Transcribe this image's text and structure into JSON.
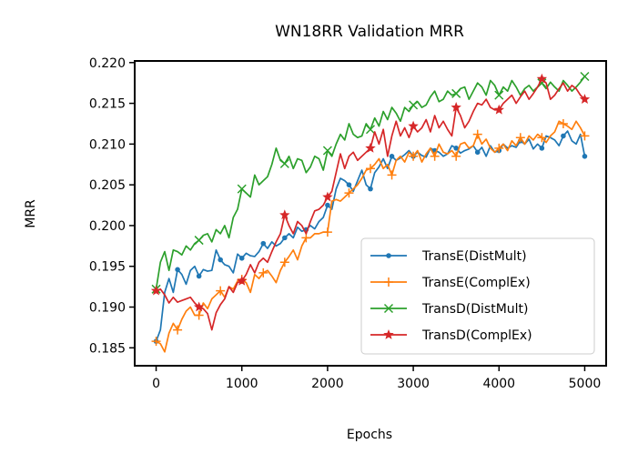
{
  "chart_data": {
    "type": "line",
    "title": "WN18RR Validation MRR",
    "xlabel": "Epochs",
    "ylabel": "MRR",
    "xlim": [
      -250,
      5250
    ],
    "ylim": [
      0.1828,
      0.2202
    ],
    "xticks": [
      0,
      1000,
      2000,
      3000,
      4000,
      5000
    ],
    "yticks": [
      0.185,
      0.19,
      0.195,
      0.2,
      0.205,
      0.21,
      0.215,
      0.22
    ],
    "xtick_labels": [
      "0",
      "1000",
      "2000",
      "3000",
      "4000",
      "5000"
    ],
    "ytick_labels": [
      "0.185",
      "0.190",
      "0.195",
      "0.200",
      "0.205",
      "0.210",
      "0.215",
      "0.220"
    ],
    "grid": false,
    "legend_position": "lower-right",
    "x": [
      0,
      50,
      100,
      150,
      200,
      250,
      300,
      350,
      400,
      450,
      500,
      550,
      600,
      650,
      700,
      750,
      800,
      850,
      900,
      950,
      1000,
      1050,
      1100,
      1150,
      1200,
      1250,
      1300,
      1350,
      1400,
      1450,
      1500,
      1550,
      1600,
      1650,
      1700,
      1750,
      1800,
      1850,
      1900,
      1950,
      2000,
      2050,
      2100,
      2150,
      2200,
      2250,
      2300,
      2350,
      2400,
      2450,
      2500,
      2550,
      2600,
      2650,
      2700,
      2750,
      2800,
      2850,
      2900,
      2950,
      3000,
      3050,
      3100,
      3150,
      3200,
      3250,
      3300,
      3350,
      3400,
      3450,
      3500,
      3550,
      3600,
      3650,
      3700,
      3750,
      3800,
      3850,
      3900,
      3950,
      4000,
      4050,
      4100,
      4150,
      4200,
      4250,
      4300,
      4350,
      4400,
      4450,
      4500,
      4550,
      4600,
      4650,
      4700,
      4750,
      4800,
      4850,
      4900,
      4950,
      5000
    ],
    "series": [
      {
        "name": "TransE(DistMult)",
        "color": "#1f77b4",
        "marker": "dot",
        "marker_every": 5,
        "values": [
          0.1858,
          0.1872,
          0.1918,
          0.1935,
          0.1918,
          0.1946,
          0.194,
          0.1928,
          0.1945,
          0.195,
          0.1938,
          0.1946,
          0.1944,
          0.1945,
          0.197,
          0.1958,
          0.1952,
          0.195,
          0.1942,
          0.1965,
          0.196,
          0.1966,
          0.1963,
          0.1962,
          0.1968,
          0.1978,
          0.1972,
          0.198,
          0.1975,
          0.1978,
          0.1985,
          0.199,
          0.1985,
          0.1998,
          0.1993,
          0.1995,
          0.2,
          0.1996,
          0.2005,
          0.201,
          0.2025,
          0.202,
          0.2045,
          0.2058,
          0.2055,
          0.205,
          0.2042,
          0.2055,
          0.2068,
          0.205,
          0.2045,
          0.2065,
          0.2072,
          0.2082,
          0.207,
          0.2085,
          0.208,
          0.2083,
          0.2087,
          0.2092,
          0.2085,
          0.209,
          0.2086,
          0.2084,
          0.2095,
          0.2092,
          0.209,
          0.2085,
          0.2088,
          0.2098,
          0.2095,
          0.2089,
          0.2092,
          0.2094,
          0.2098,
          0.209,
          0.2096,
          0.2085,
          0.2098,
          0.209,
          0.2092,
          0.21,
          0.2095,
          0.2098,
          0.2096,
          0.2104,
          0.21,
          0.2106,
          0.2094,
          0.21,
          0.2095,
          0.211,
          0.2108,
          0.2105,
          0.2098,
          0.211,
          0.2116,
          0.2104,
          0.21,
          0.2112,
          0.2085
        ]
      },
      {
        "name": "TransE(ComplEx)",
        "color": "#ff7f0e",
        "marker": "plus",
        "marker_every": 5,
        "values": [
          0.1858,
          0.1855,
          0.1845,
          0.1868,
          0.188,
          0.1872,
          0.1885,
          0.1895,
          0.19,
          0.189,
          0.189,
          0.1905,
          0.1898,
          0.191,
          0.1915,
          0.192,
          0.1912,
          0.1925,
          0.1922,
          0.1932,
          0.1934,
          0.193,
          0.1918,
          0.194,
          0.1935,
          0.1942,
          0.1945,
          0.1938,
          0.193,
          0.1945,
          0.1955,
          0.1962,
          0.197,
          0.1958,
          0.1975,
          0.1985,
          0.1985,
          0.199,
          0.199,
          0.1992,
          0.1992,
          0.203,
          0.2032,
          0.203,
          0.2035,
          0.204,
          0.2045,
          0.205,
          0.2058,
          0.2068,
          0.207,
          0.2075,
          0.2082,
          0.207,
          0.2075,
          0.2062,
          0.208,
          0.2085,
          0.2078,
          0.209,
          0.2085,
          0.2092,
          0.2078,
          0.2088,
          0.2095,
          0.2085,
          0.21,
          0.209,
          0.2088,
          0.2092,
          0.2085,
          0.21,
          0.2102,
          0.2095,
          0.2098,
          0.2112,
          0.21,
          0.2106,
          0.2095,
          0.209,
          0.2095,
          0.21,
          0.2092,
          0.2104,
          0.2098,
          0.2108,
          0.21,
          0.211,
          0.2105,
          0.2112,
          0.2108,
          0.2102,
          0.211,
          0.2115,
          0.2128,
          0.2125,
          0.2122,
          0.2118,
          0.2128,
          0.212,
          0.211
        ]
      },
      {
        "name": "TransD(DistMult)",
        "color": "#2ca02c",
        "marker": "x",
        "marker_every": 10,
        "values": [
          0.1922,
          0.1955,
          0.1968,
          0.1945,
          0.197,
          0.1968,
          0.1964,
          0.1975,
          0.197,
          0.1978,
          0.1982,
          0.1988,
          0.199,
          0.198,
          0.1995,
          0.199,
          0.2,
          0.1985,
          0.201,
          0.202,
          0.2045,
          0.204,
          0.2035,
          0.2062,
          0.205,
          0.2055,
          0.206,
          0.2075,
          0.2095,
          0.208,
          0.2076,
          0.2085,
          0.207,
          0.2082,
          0.208,
          0.2065,
          0.2072,
          0.2085,
          0.2082,
          0.2068,
          0.2092,
          0.2085,
          0.21,
          0.2112,
          0.2105,
          0.2125,
          0.2112,
          0.2108,
          0.211,
          0.2125,
          0.2118,
          0.2132,
          0.2122,
          0.214,
          0.213,
          0.2145,
          0.2138,
          0.2128,
          0.2145,
          0.214,
          0.2148,
          0.2152,
          0.2145,
          0.2148,
          0.2158,
          0.2165,
          0.2152,
          0.2155,
          0.2165,
          0.216,
          0.2162,
          0.2168,
          0.217,
          0.2155,
          0.2165,
          0.2175,
          0.217,
          0.216,
          0.2178,
          0.2172,
          0.216,
          0.217,
          0.2165,
          0.2178,
          0.217,
          0.216,
          0.2168,
          0.2172,
          0.2165,
          0.217,
          0.2175,
          0.2168,
          0.2176,
          0.217,
          0.2165,
          0.2178,
          0.2172,
          0.2165,
          0.217,
          0.2176,
          0.2183
        ]
      },
      {
        "name": "TransD(ComplEx)",
        "color": "#d62728",
        "marker": "star",
        "marker_every": 10,
        "values": [
          0.192,
          0.1922,
          0.1915,
          0.1905,
          0.1912,
          0.1906,
          0.1908,
          0.191,
          0.1912,
          0.1905,
          0.19,
          0.1898,
          0.1892,
          0.1872,
          0.1893,
          0.1903,
          0.191,
          0.1925,
          0.1918,
          0.193,
          0.1932,
          0.194,
          0.1952,
          0.1942,
          0.1955,
          0.196,
          0.1955,
          0.1968,
          0.198,
          0.199,
          0.2013,
          0.2,
          0.199,
          0.2005,
          0.2,
          0.199,
          0.2005,
          0.2018,
          0.202,
          0.2025,
          0.2035,
          0.2042,
          0.2065,
          0.2088,
          0.207,
          0.2085,
          0.209,
          0.208,
          0.2085,
          0.209,
          0.2095,
          0.2115,
          0.21,
          0.2118,
          0.2085,
          0.211,
          0.2128,
          0.211,
          0.212,
          0.2108,
          0.2122,
          0.2115,
          0.212,
          0.213,
          0.2115,
          0.2135,
          0.212,
          0.2128,
          0.2118,
          0.211,
          0.2145,
          0.2135,
          0.212,
          0.2128,
          0.214,
          0.215,
          0.2148,
          0.2155,
          0.2145,
          0.2142,
          0.2142,
          0.215,
          0.2155,
          0.216,
          0.215,
          0.2158,
          0.2165,
          0.2155,
          0.2162,
          0.217,
          0.218,
          0.2175,
          0.2155,
          0.216,
          0.2168,
          0.2175,
          0.2165,
          0.2172,
          0.2168,
          0.216,
          0.2155
        ]
      }
    ]
  }
}
